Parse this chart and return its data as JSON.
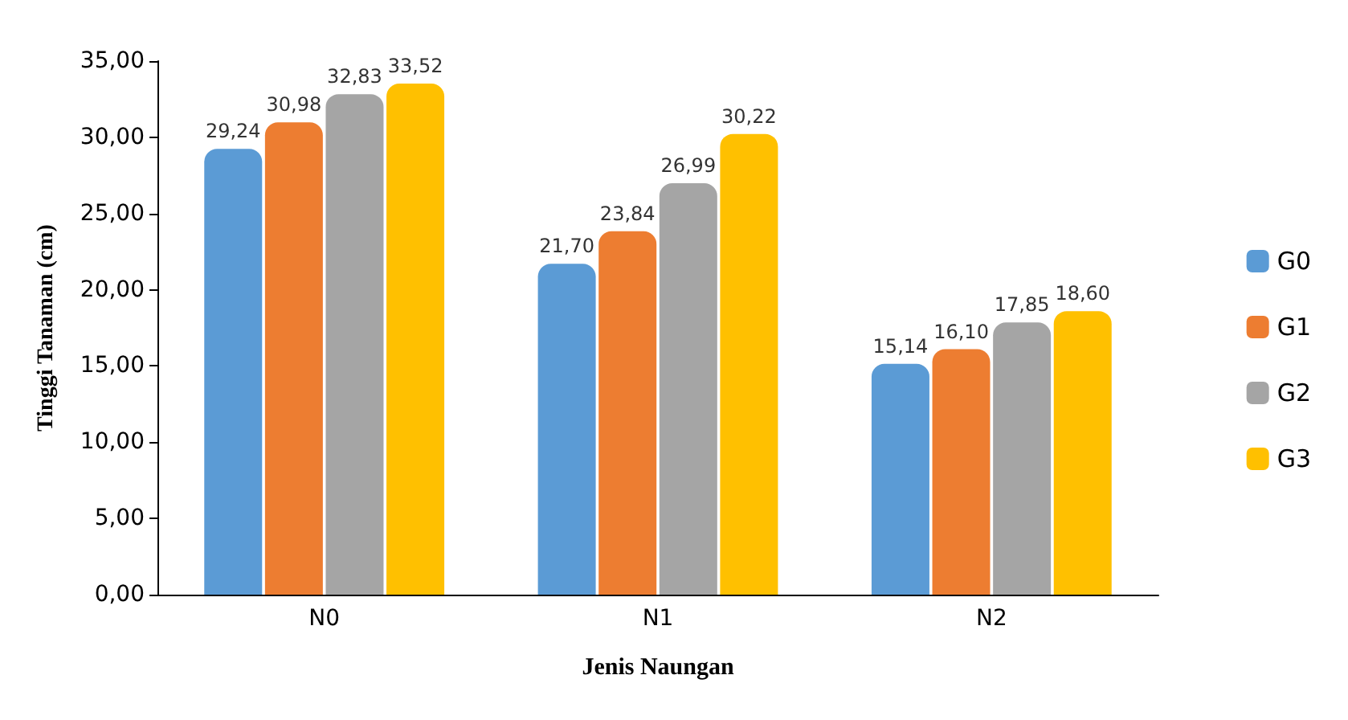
{
  "chart_data": {
    "type": "bar",
    "xlabel": "Jenis Naungan",
    "ylabel": "Tinggi Tanaman (cm)",
    "categories": [
      "N0",
      "N1",
      "N2"
    ],
    "series": [
      {
        "name": "G0",
        "color": "#5b9bd5",
        "values": [
          29.24,
          21.7,
          15.14
        ],
        "value_labels": [
          "29,24",
          "21,70",
          "15,14"
        ]
      },
      {
        "name": "G1",
        "color": "#ed7d31",
        "values": [
          30.98,
          23.84,
          16.1
        ],
        "value_labels": [
          "30,98",
          "23,84",
          "16,10"
        ]
      },
      {
        "name": "G2",
        "color": "#a5a5a5",
        "values": [
          32.83,
          26.99,
          17.85
        ],
        "value_labels": [
          "32,83",
          "26,99",
          "17,85"
        ]
      },
      {
        "name": "G3",
        "color": "#ffc000",
        "values": [
          33.52,
          30.22,
          18.6
        ],
        "value_labels": [
          "33,52",
          "30,22",
          "18,60"
        ]
      }
    ],
    "ylim": [
      0,
      35
    ],
    "yticks": [
      {
        "value": 0,
        "label": "0,00"
      },
      {
        "value": 5,
        "label": "5,00"
      },
      {
        "value": 10,
        "label": "10,00"
      },
      {
        "value": 15,
        "label": "15,00"
      },
      {
        "value": 20,
        "label": "20,00"
      },
      {
        "value": 25,
        "label": "25,00"
      },
      {
        "value": 30,
        "label": "30,00"
      },
      {
        "value": 35,
        "label": "35,00"
      }
    ],
    "grid": false,
    "legend": "right"
  }
}
